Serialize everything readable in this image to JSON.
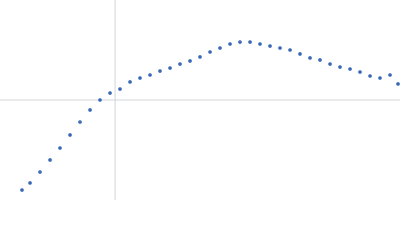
{
  "chart_data": {
    "type": "scatter",
    "x": [
      0.331,
      0.452,
      0.602,
      0.753,
      0.903,
      1.054,
      1.204,
      1.355,
      1.505,
      1.656,
      1.806,
      1.957,
      2.107,
      2.258,
      2.408,
      2.559,
      2.709,
      2.86,
      3.01,
      3.161,
      3.311,
      3.462,
      3.612,
      3.763,
      3.913,
      4.064,
      4.214,
      4.365,
      4.515,
      4.666,
      4.816,
      4.967,
      5.117,
      5.268,
      5.418,
      5.569,
      5.719,
      5.87,
      5.99
    ],
    "values": [
      0.11,
      0.188,
      0.309,
      0.442,
      0.574,
      0.718,
      0.861,
      0.994,
      1.104,
      1.181,
      1.225,
      1.303,
      1.347,
      1.38,
      1.424,
      1.457,
      1.501,
      1.535,
      1.579,
      1.634,
      1.678,
      1.722,
      1.744,
      1.744,
      1.722,
      1.7,
      1.678,
      1.656,
      1.612,
      1.568,
      1.546,
      1.501,
      1.468,
      1.446,
      1.413,
      1.369,
      1.347,
      1.38,
      1.281
    ],
    "color": "#3b68b5",
    "xlim": [
      0,
      6.02
    ],
    "ylim": [
      0,
      2.208
    ],
    "guides": {
      "x": 1.732,
      "y": 1.104,
      "color": "#d0d4da"
    }
  }
}
